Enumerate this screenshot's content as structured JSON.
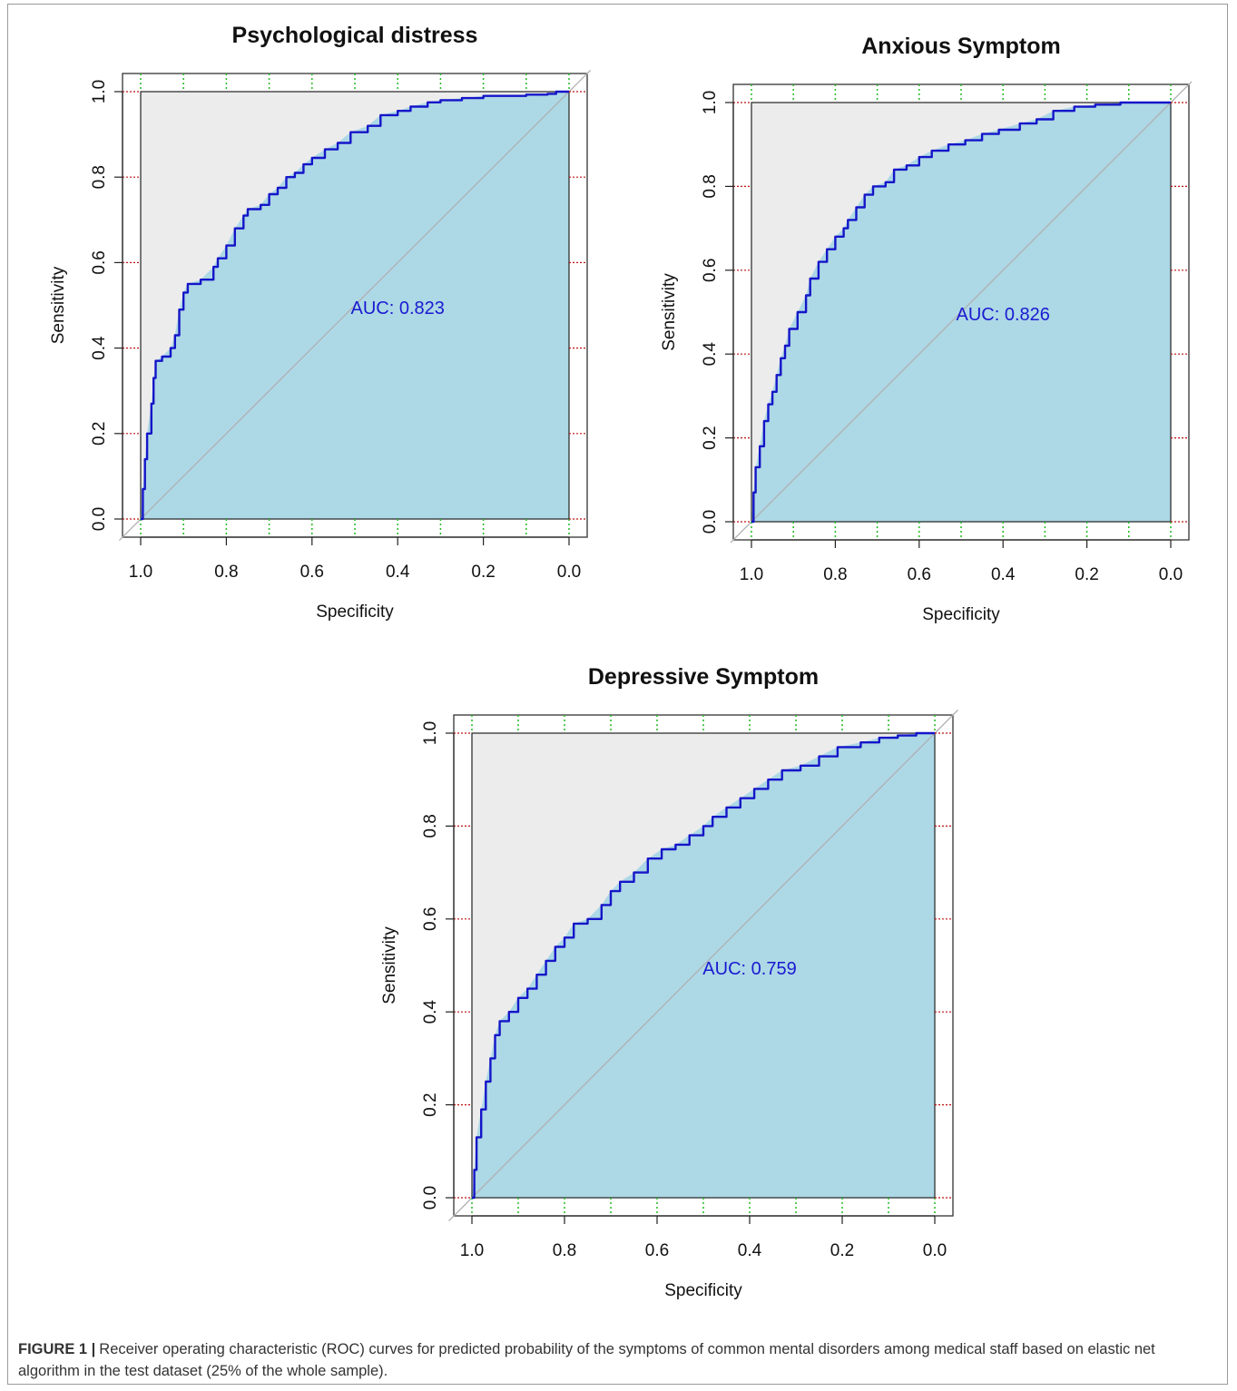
{
  "figure": {
    "caption_label": "FIGURE 1 |",
    "caption_text": "Receiver operating characteristic (ROC) curves for predicted probability of the symptoms of common mental disorders among medical staff based on elastic net algorithm in the test dataset (25% of the whole sample)."
  },
  "colors": {
    "curve": "#1515c8",
    "auc_fill": "#add8e6",
    "panel_bg": "#ececec",
    "diagonal": "#b0b0b0",
    "grid_x": "#22bb22",
    "grid_y": "#bb1111",
    "auc_text": "#1a1ad0"
  },
  "chart_data": [
    {
      "type": "line",
      "title": "Psychological distress",
      "xlabel": "Specificity",
      "ylabel": "Sensitivity",
      "xlim": [
        1.0,
        0.0
      ],
      "ylim": [
        0.0,
        1.0
      ],
      "x_ticks": [
        "1.0",
        "0.8",
        "0.6",
        "0.4",
        "0.2",
        "0.0"
      ],
      "y_ticks": [
        "0.0",
        "0.2",
        "0.4",
        "0.6",
        "0.8",
        "1.0"
      ],
      "x_reversed": true,
      "annotation": "AUC: 0.823",
      "grid": true,
      "points": [
        [
          1.0,
          0.0
        ],
        [
          0.995,
          0.07
        ],
        [
          0.99,
          0.14
        ],
        [
          0.985,
          0.2
        ],
        [
          0.975,
          0.27
        ],
        [
          0.97,
          0.33
        ],
        [
          0.965,
          0.37
        ],
        [
          0.95,
          0.38
        ],
        [
          0.93,
          0.4
        ],
        [
          0.92,
          0.43
        ],
        [
          0.91,
          0.49
        ],
        [
          0.9,
          0.53
        ],
        [
          0.89,
          0.55
        ],
        [
          0.86,
          0.56
        ],
        [
          0.83,
          0.59
        ],
        [
          0.82,
          0.61
        ],
        [
          0.8,
          0.64
        ],
        [
          0.78,
          0.68
        ],
        [
          0.76,
          0.71
        ],
        [
          0.75,
          0.725
        ],
        [
          0.72,
          0.735
        ],
        [
          0.7,
          0.76
        ],
        [
          0.68,
          0.775
        ],
        [
          0.66,
          0.8
        ],
        [
          0.64,
          0.81
        ],
        [
          0.62,
          0.83
        ],
        [
          0.6,
          0.845
        ],
        [
          0.57,
          0.865
        ],
        [
          0.54,
          0.88
        ],
        [
          0.51,
          0.905
        ],
        [
          0.47,
          0.92
        ],
        [
          0.44,
          0.945
        ],
        [
          0.4,
          0.955
        ],
        [
          0.37,
          0.965
        ],
        [
          0.33,
          0.975
        ],
        [
          0.3,
          0.98
        ],
        [
          0.25,
          0.985
        ],
        [
          0.2,
          0.99
        ],
        [
          0.15,
          0.99
        ],
        [
          0.1,
          0.993
        ],
        [
          0.05,
          0.995
        ],
        [
          0.03,
          1.0
        ],
        [
          0.0,
          1.0
        ]
      ]
    },
    {
      "type": "line",
      "title": "Anxious Symptom",
      "xlabel": "Specificity",
      "ylabel": "Sensitivity",
      "xlim": [
        1.0,
        0.0
      ],
      "ylim": [
        0.0,
        1.0
      ],
      "x_ticks": [
        "1.0",
        "0.8",
        "0.6",
        "0.4",
        "0.2",
        "0.0"
      ],
      "y_ticks": [
        "0.0",
        "0.2",
        "0.4",
        "0.6",
        "0.8",
        "1.0"
      ],
      "x_reversed": true,
      "annotation": "AUC: 0.826",
      "grid": true,
      "points": [
        [
          1.0,
          0.0
        ],
        [
          0.995,
          0.07
        ],
        [
          0.99,
          0.13
        ],
        [
          0.98,
          0.18
        ],
        [
          0.97,
          0.24
        ],
        [
          0.96,
          0.28
        ],
        [
          0.95,
          0.31
        ],
        [
          0.94,
          0.35
        ],
        [
          0.93,
          0.39
        ],
        [
          0.92,
          0.42
        ],
        [
          0.91,
          0.46
        ],
        [
          0.89,
          0.5
        ],
        [
          0.87,
          0.54
        ],
        [
          0.86,
          0.58
        ],
        [
          0.84,
          0.62
        ],
        [
          0.82,
          0.65
        ],
        [
          0.8,
          0.68
        ],
        [
          0.78,
          0.7
        ],
        [
          0.77,
          0.72
        ],
        [
          0.75,
          0.75
        ],
        [
          0.73,
          0.78
        ],
        [
          0.71,
          0.8
        ],
        [
          0.68,
          0.81
        ],
        [
          0.66,
          0.84
        ],
        [
          0.63,
          0.85
        ],
        [
          0.6,
          0.87
        ],
        [
          0.57,
          0.885
        ],
        [
          0.53,
          0.9
        ],
        [
          0.49,
          0.91
        ],
        [
          0.45,
          0.925
        ],
        [
          0.41,
          0.935
        ],
        [
          0.36,
          0.95
        ],
        [
          0.32,
          0.96
        ],
        [
          0.28,
          0.98
        ],
        [
          0.23,
          0.99
        ],
        [
          0.18,
          0.995
        ],
        [
          0.12,
          1.0
        ],
        [
          0.05,
          1.0
        ],
        [
          0.0,
          1.0
        ]
      ]
    },
    {
      "type": "line",
      "title": "Depressive Symptom",
      "xlabel": "Specificity",
      "ylabel": "Sensitivity",
      "xlim": [
        1.0,
        0.0
      ],
      "ylim": [
        0.0,
        1.0
      ],
      "x_ticks": [
        "1.0",
        "0.8",
        "0.6",
        "0.4",
        "0.2",
        "0.0"
      ],
      "y_ticks": [
        "0.0",
        "0.2",
        "0.4",
        "0.6",
        "0.8",
        "1.0"
      ],
      "x_reversed": true,
      "annotation": "AUC: 0.759",
      "grid": true,
      "points": [
        [
          1.0,
          0.0
        ],
        [
          0.995,
          0.06
        ],
        [
          0.99,
          0.13
        ],
        [
          0.98,
          0.19
        ],
        [
          0.97,
          0.25
        ],
        [
          0.96,
          0.3
        ],
        [
          0.95,
          0.35
        ],
        [
          0.94,
          0.38
        ],
        [
          0.92,
          0.4
        ],
        [
          0.9,
          0.43
        ],
        [
          0.88,
          0.45
        ],
        [
          0.86,
          0.48
        ],
        [
          0.84,
          0.51
        ],
        [
          0.82,
          0.54
        ],
        [
          0.8,
          0.56
        ],
        [
          0.78,
          0.59
        ],
        [
          0.75,
          0.6
        ],
        [
          0.72,
          0.63
        ],
        [
          0.7,
          0.66
        ],
        [
          0.68,
          0.68
        ],
        [
          0.65,
          0.7
        ],
        [
          0.62,
          0.73
        ],
        [
          0.59,
          0.75
        ],
        [
          0.56,
          0.76
        ],
        [
          0.53,
          0.78
        ],
        [
          0.5,
          0.8
        ],
        [
          0.48,
          0.82
        ],
        [
          0.45,
          0.84
        ],
        [
          0.42,
          0.86
        ],
        [
          0.39,
          0.88
        ],
        [
          0.36,
          0.9
        ],
        [
          0.33,
          0.92
        ],
        [
          0.29,
          0.93
        ],
        [
          0.25,
          0.95
        ],
        [
          0.21,
          0.97
        ],
        [
          0.16,
          0.98
        ],
        [
          0.12,
          0.99
        ],
        [
          0.08,
          0.995
        ],
        [
          0.04,
          1.0
        ],
        [
          0.0,
          1.0
        ]
      ]
    }
  ]
}
